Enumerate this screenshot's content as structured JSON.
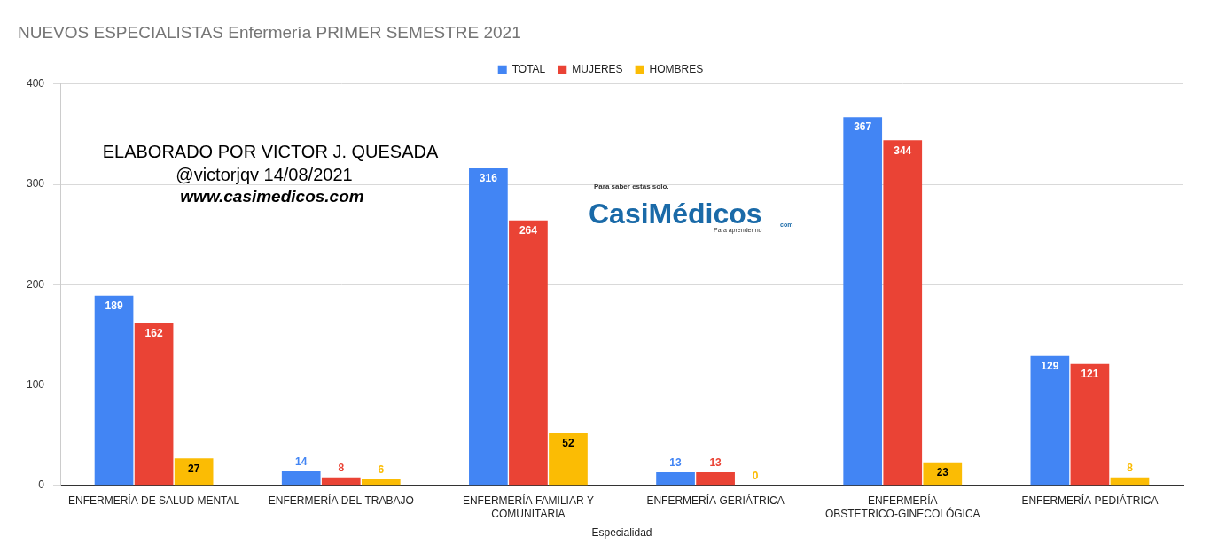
{
  "chart_data": {
    "type": "bar",
    "title": "NUEVOS ESPECIALISTAS Enfermería PRIMER SEMESTRE 2021",
    "x_label": "Especialidad",
    "categories": [
      "ENFERMERÍA DE SALUD MENTAL",
      "ENFERMERÍA DEL TRABAJO",
      "ENFERMERÍA FAMILIAR Y COMUNITARIA",
      "ENFERMERÍA GERIÁTRICA",
      "ENFERMERÍA OBSTETRICO-GINECOLÓGICA",
      "ENFERMERÍA PEDIÁTRICA"
    ],
    "series": [
      {
        "name": "TOTAL",
        "color": "#4285f4",
        "values": [
          189,
          14,
          316,
          13,
          367,
          129
        ]
      },
      {
        "name": "MUJERES",
        "color": "#ea4335",
        "values": [
          162,
          8,
          264,
          13,
          344,
          121
        ]
      },
      {
        "name": "HOMBRES",
        "color": "#fbbc04",
        "values": [
          27,
          6,
          52,
          0,
          23,
          8
        ]
      }
    ],
    "ylim": [
      0,
      400
    ],
    "yticks": [
      0,
      100,
      200,
      300,
      400
    ],
    "grid": true,
    "legend": "top",
    "data_labels": true,
    "annotations": [
      "ELABORADO POR VICTOR J. QUESADA",
      "@victorjqv 14/08/2021",
      "www.casimedicos.com",
      "Para saber estas solo.",
      "CasiMédicos",
      "Para aprender no",
      "com"
    ]
  }
}
